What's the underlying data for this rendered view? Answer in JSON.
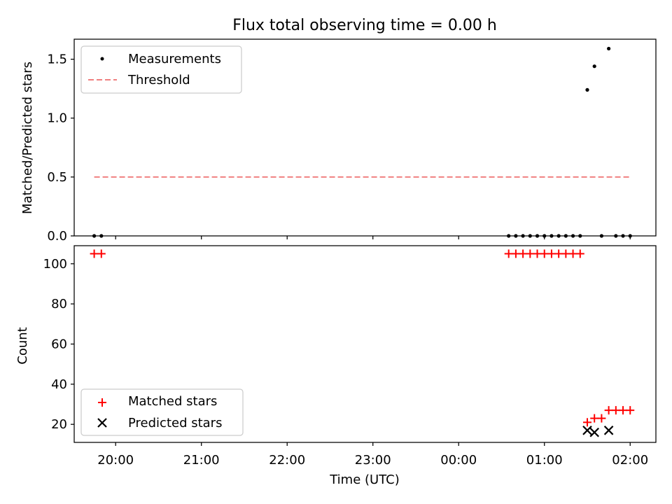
{
  "chart_data": [
    {
      "type": "scatter",
      "title": "Flux total observing time = 0.00 h",
      "xlabel": "",
      "ylabel": "Matched/Predicted stars",
      "x_axis": "time (UTC), shared with the lower panel",
      "xlim": [
        "19:31",
        "02:18"
      ],
      "ylim": [
        0,
        1.67
      ],
      "yticks": [
        0.0,
        0.5,
        1.0,
        1.5
      ],
      "ytick_labels": [
        "0.0",
        "0.5",
        "1.0",
        "1.5"
      ],
      "grid": false,
      "legend_position": "upper left",
      "series": [
        {
          "name": "Measurements",
          "marker": "dot",
          "color": "#000000",
          "points": [
            [
              "19:45",
              0
            ],
            [
              "19:50",
              0
            ],
            [
              "00:35",
              0
            ],
            [
              "00:40",
              0
            ],
            [
              "00:45",
              0
            ],
            [
              "00:50",
              0
            ],
            [
              "00:55",
              0
            ],
            [
              "01:00",
              0
            ],
            [
              "01:05",
              0
            ],
            [
              "01:10",
              0
            ],
            [
              "01:15",
              0
            ],
            [
              "01:20",
              0
            ],
            [
              "01:25",
              0
            ],
            [
              "01:30",
              1.24
            ],
            [
              "01:35",
              1.44
            ],
            [
              "01:40",
              0
            ],
            [
              "01:45",
              1.59
            ],
            [
              "01:50",
              0
            ],
            [
              "01:55",
              0
            ],
            [
              "02:00",
              0
            ]
          ]
        },
        {
          "name": "Threshold",
          "style": "dashed line",
          "color": "#f08080",
          "points": [
            [
              "19:45",
              0.5
            ],
            [
              "02:00",
              0.5
            ]
          ]
        }
      ]
    },
    {
      "type": "scatter",
      "title": "",
      "xlabel": "Time (UTC)",
      "ylabel": "Count",
      "xlim": [
        "19:31",
        "02:18"
      ],
      "xticks": [
        "20:00",
        "21:00",
        "22:00",
        "23:00",
        "00:00",
        "01:00",
        "02:00"
      ],
      "ylim": [
        11,
        109
      ],
      "yticks": [
        20,
        40,
        60,
        80,
        100
      ],
      "ytick_labels": [
        "20",
        "40",
        "60",
        "80",
        "100"
      ],
      "grid": false,
      "legend_position": "lower left",
      "series": [
        {
          "name": "Matched stars",
          "marker": "plus",
          "color": "#ff0000",
          "points": [
            [
              "19:45",
              105
            ],
            [
              "19:50",
              105
            ],
            [
              "00:35",
              105
            ],
            [
              "00:40",
              105
            ],
            [
              "00:45",
              105
            ],
            [
              "00:50",
              105
            ],
            [
              "00:55",
              105
            ],
            [
              "01:00",
              105
            ],
            [
              "01:05",
              105
            ],
            [
              "01:10",
              105
            ],
            [
              "01:15",
              105
            ],
            [
              "01:20",
              105
            ],
            [
              "01:25",
              105
            ],
            [
              "01:30",
              21
            ],
            [
              "01:35",
              23
            ],
            [
              "01:40",
              23
            ],
            [
              "01:45",
              27
            ],
            [
              "01:50",
              27
            ],
            [
              "01:55",
              27
            ],
            [
              "02:00",
              27
            ]
          ]
        },
        {
          "name": "Predicted stars",
          "marker": "x",
          "color": "#000000",
          "points": [
            [
              "01:30",
              17
            ],
            [
              "01:35",
              16
            ],
            [
              "01:45",
              17
            ]
          ]
        }
      ]
    }
  ]
}
